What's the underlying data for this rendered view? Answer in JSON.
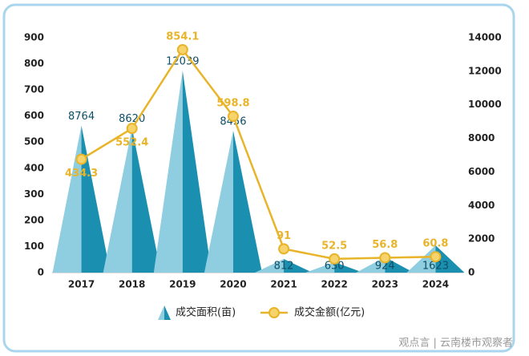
{
  "chart_data": {
    "type": "combo",
    "categories": [
      "2017",
      "2018",
      "2019",
      "2020",
      "2021",
      "2022",
      "2023",
      "2024"
    ],
    "series": [
      {
        "name": "成交面积(亩)",
        "type": "triangle",
        "color": "#1a8fb0",
        "axis": "y2",
        "values": [
          8764,
          8620,
          12039,
          8456,
          812,
          630,
          924,
          1623
        ]
      },
      {
        "name": "成交金额(亿元)",
        "type": "line",
        "color": "#e8b42a",
        "axis": "y",
        "values": [
          434.3,
          552.4,
          854.1,
          598.8,
          91,
          52.5,
          56.8,
          60.8
        ]
      }
    ],
    "ylim": [
      0,
      900
    ],
    "yticks": [
      0,
      100,
      200,
      300,
      400,
      500,
      600,
      700,
      800,
      900
    ],
    "y2lim": [
      0,
      14000
    ],
    "y2ticks": [
      0,
      2000,
      4000,
      6000,
      8000,
      10000,
      12000,
      14000
    ],
    "legend": "bottom",
    "grid": false,
    "watermark": "观点言 | 云南楼市观察者"
  }
}
